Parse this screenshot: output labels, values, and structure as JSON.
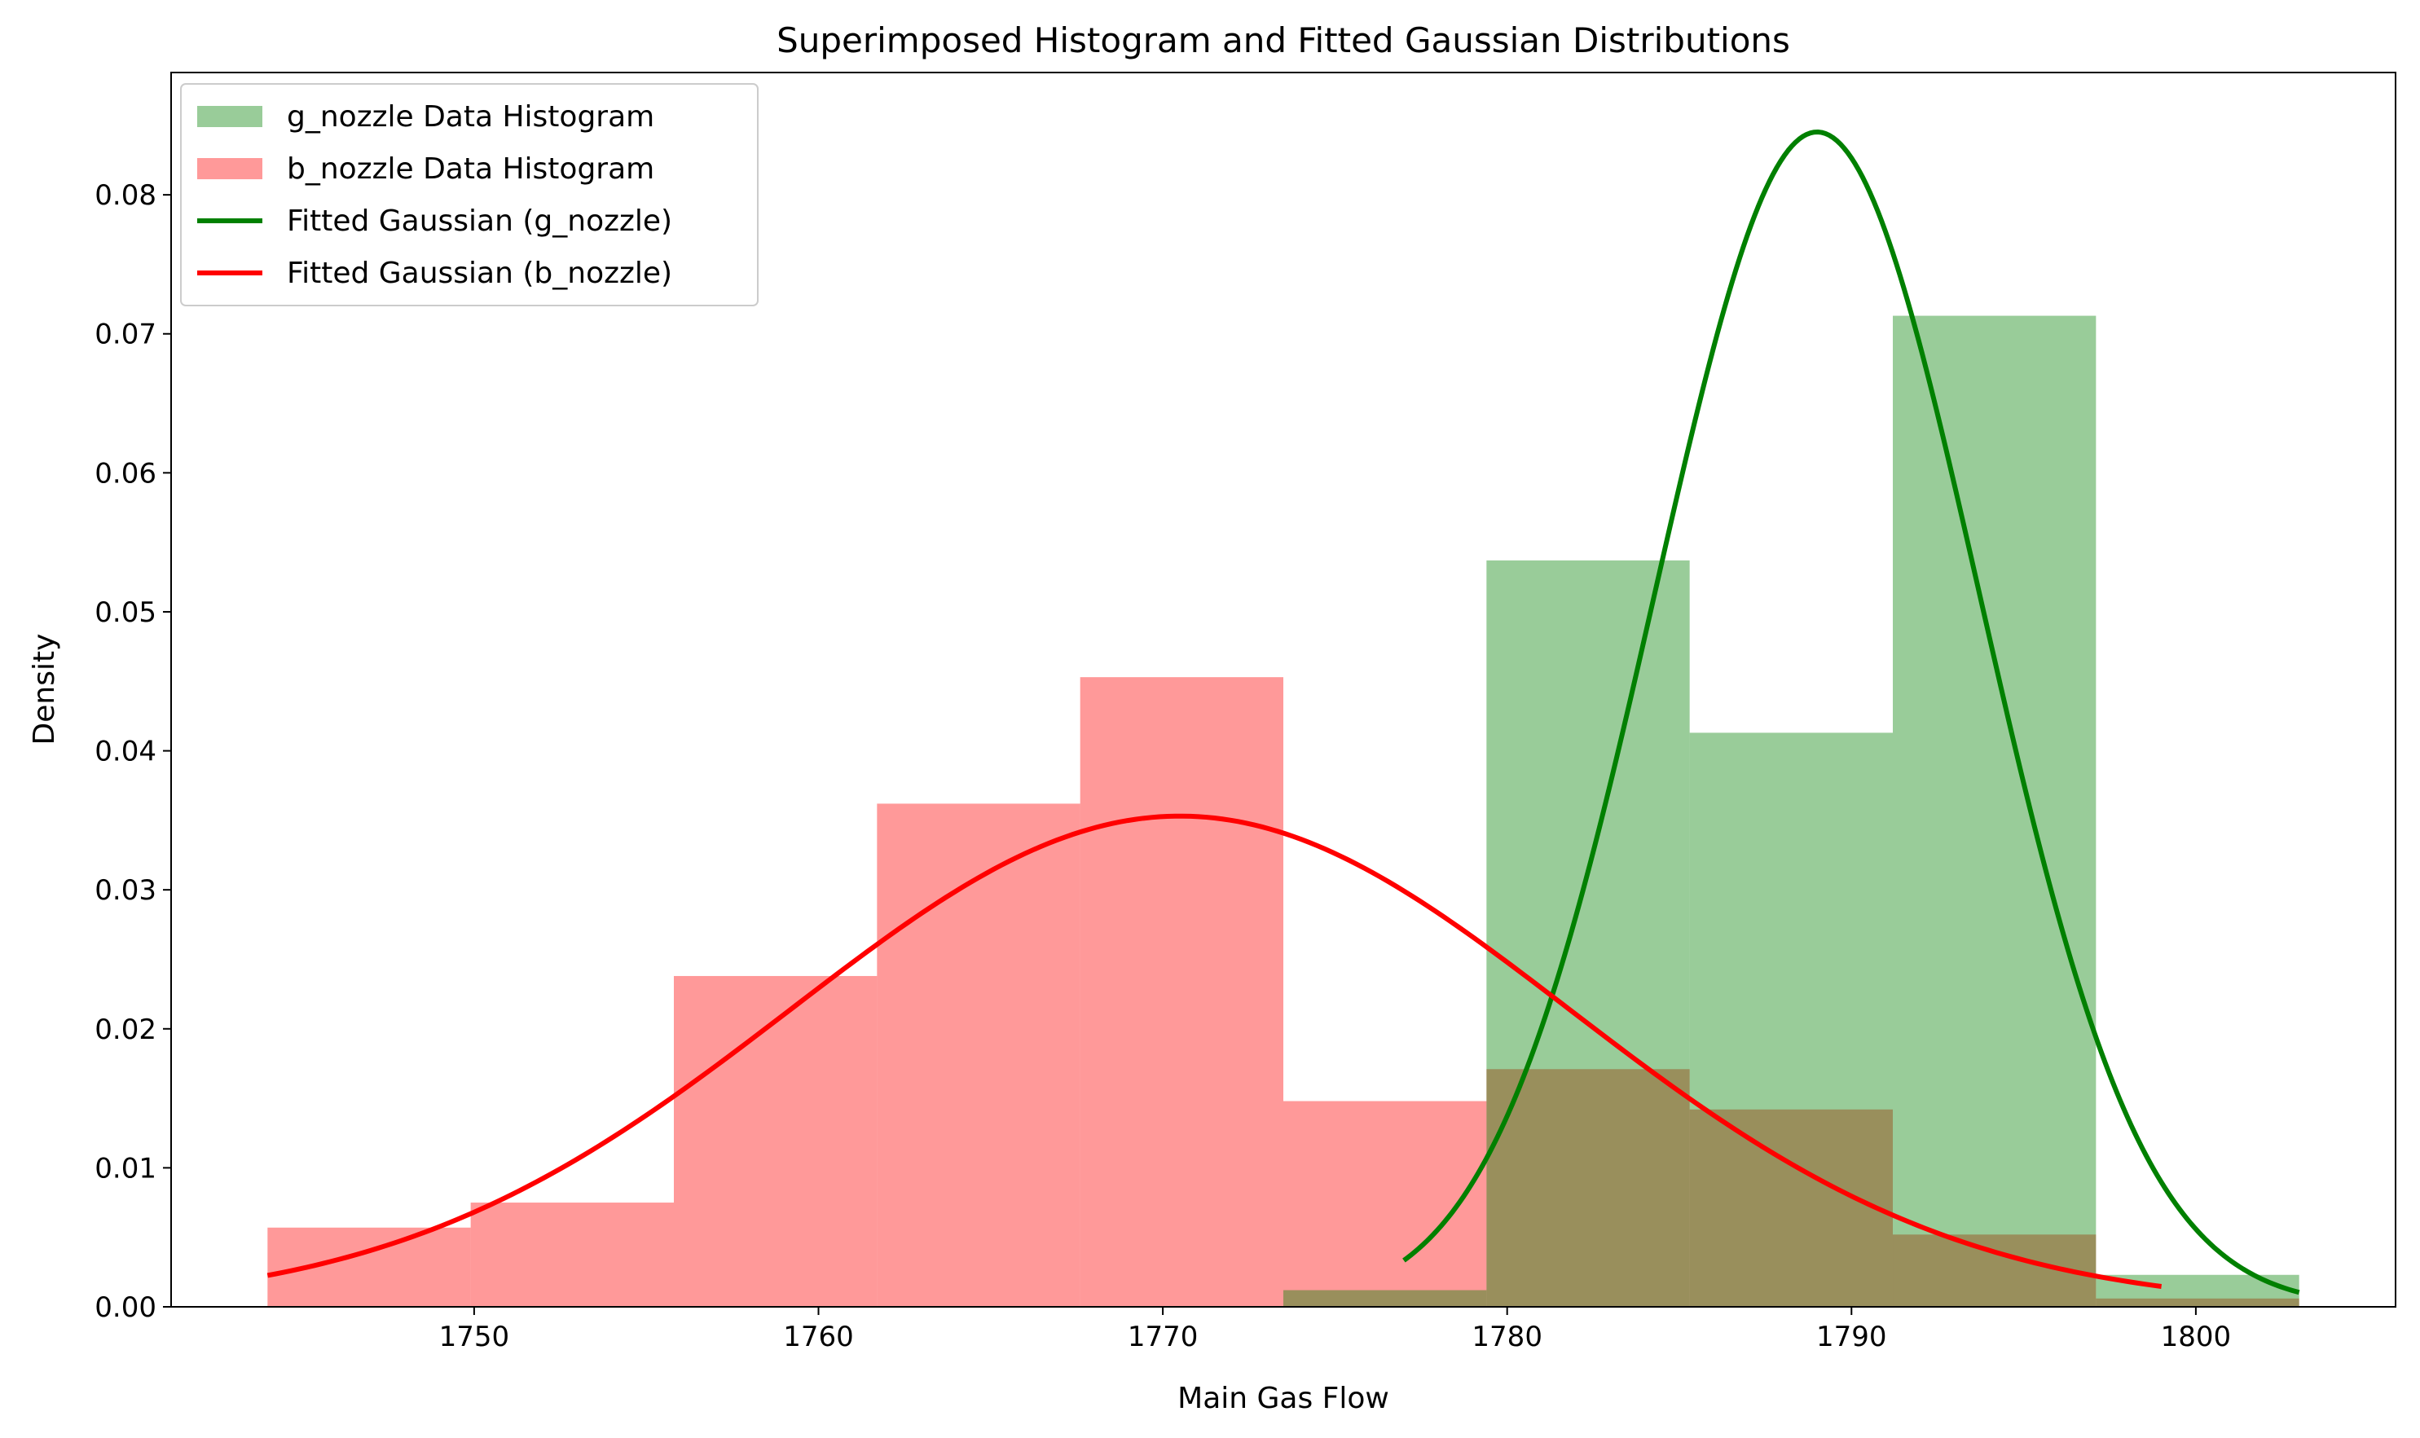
{
  "chart_data": {
    "type": "histogram",
    "title": "Superimposed Histogram and Fitted Gaussian Distributions",
    "xlabel": "Main Gas Flow",
    "ylabel": "Density",
    "xlim": [
      1741.2,
      1805.8
    ],
    "ylim": [
      0,
      0.0888
    ],
    "xticks": [
      1750,
      1760,
      1770,
      1780,
      1790,
      1800
    ],
    "yticks": [
      0.0,
      0.01,
      0.02,
      0.03,
      0.04,
      0.05,
      0.06,
      0.07,
      0.08
    ],
    "ytick_labels": [
      "0.00",
      "0.01",
      "0.02",
      "0.03",
      "0.04",
      "0.05",
      "0.06",
      "0.07",
      "0.08"
    ],
    "legend_position": "upper-left",
    "histograms": [
      {
        "name": "b_nozzle Data Histogram",
        "color": "#ff0000",
        "alpha": 0.4,
        "bins": [
          [
            1744.0,
            1749.9,
            0.0057
          ],
          [
            1749.9,
            1755.8,
            0.0075
          ],
          [
            1755.8,
            1761.7,
            0.0238
          ],
          [
            1761.7,
            1767.6,
            0.0362
          ],
          [
            1767.6,
            1773.5,
            0.0453
          ],
          [
            1773.5,
            1779.4,
            0.0148
          ],
          [
            1779.4,
            1785.3,
            0.0171
          ],
          [
            1785.3,
            1791.2,
            0.0142
          ],
          [
            1791.2,
            1797.1,
            0.0052
          ],
          [
            1797.1,
            1803.0,
            0.0006
          ]
        ]
      },
      {
        "name": "g_nozzle Data Histogram",
        "color": "#008000",
        "alpha": 0.4,
        "bins": [
          [
            1773.5,
            1779.4,
            0.0012
          ],
          [
            1779.4,
            1785.3,
            0.0537
          ],
          [
            1785.3,
            1791.2,
            0.0413
          ],
          [
            1791.2,
            1797.1,
            0.0713
          ],
          [
            1797.1,
            1803.0,
            0.0023
          ]
        ]
      }
    ],
    "curves": [
      {
        "name": "Fitted Gaussian (g_nozzle)",
        "color": "#008000",
        "mean": 1789.0,
        "std": 4.72,
        "x_range": [
          1777.0,
          1803.0
        ]
      },
      {
        "name": "Fitted Gaussian (b_nozzle)",
        "color": "#ff0000",
        "mean": 1770.5,
        "std": 11.3,
        "x_range": [
          1744.0,
          1799.0
        ]
      }
    ],
    "legend": [
      {
        "label": "g_nozzle Data Histogram",
        "kind": "patch",
        "color": "#008000"
      },
      {
        "label": "b_nozzle Data Histogram",
        "kind": "patch",
        "color": "#ff0000"
      },
      {
        "label": "Fitted Gaussian (g_nozzle)",
        "kind": "line",
        "color": "#008000"
      },
      {
        "label": "Fitted Gaussian (b_nozzle)",
        "kind": "line",
        "color": "#ff0000"
      }
    ]
  }
}
